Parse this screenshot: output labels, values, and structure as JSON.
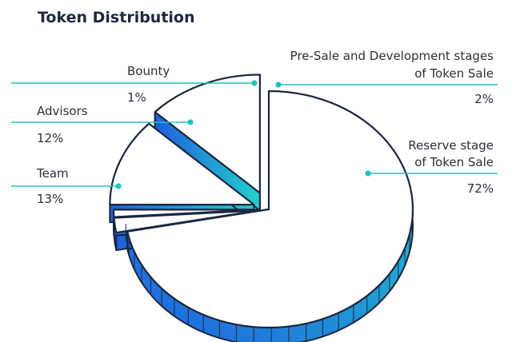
{
  "header": {
    "title": "Token Distribution"
  },
  "chart_data": {
    "type": "pie",
    "title": "Token Distribution",
    "slices": [
      {
        "label": "Reserve stage of Token Sale",
        "label_lines": [
          "Reserve stage",
          "of Token Sale"
        ],
        "value": 72,
        "value_label": "72%"
      },
      {
        "label": "Pre-Sale and Development stages of Token Sale",
        "label_lines": [
          "Pre-Sale and Development stages",
          "of Token Sale"
        ],
        "value": 2,
        "value_label": "2%"
      },
      {
        "label": "Bounty",
        "label_lines": [
          "Bounty"
        ],
        "value": 1,
        "value_label": "1%"
      },
      {
        "label": "Advisors",
        "label_lines": [
          "Advisors"
        ],
        "value": 12,
        "value_label": "12%"
      },
      {
        "label": "Team",
        "label_lines": [
          "Team"
        ],
        "value": 13,
        "value_label": "13%"
      }
    ],
    "colors": {
      "outline": "#1d2740",
      "leader": "#1cc3c3",
      "side_light": "#20d1c9",
      "side_dark": "#1f5fe0",
      "face": "#ffffff"
    }
  }
}
